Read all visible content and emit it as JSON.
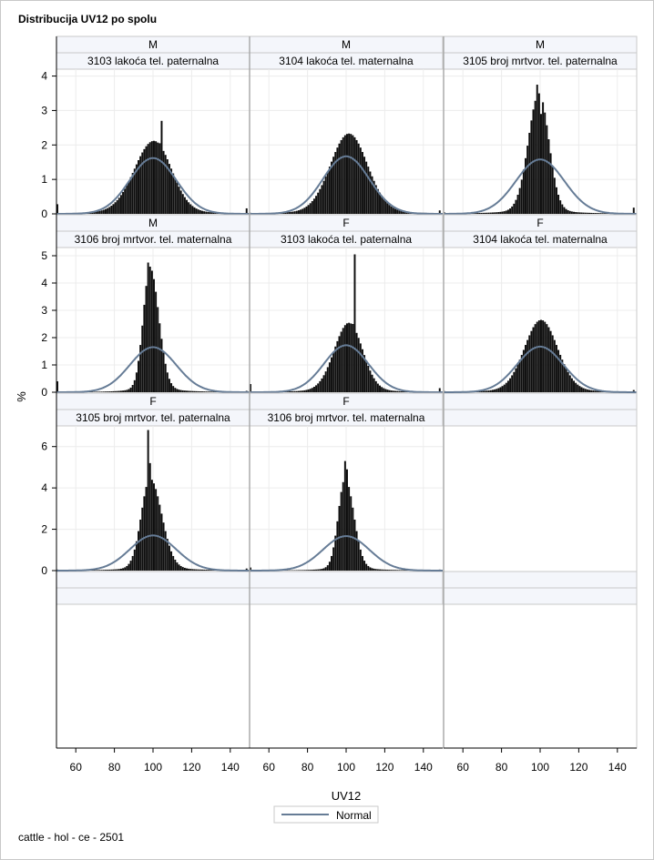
{
  "title": "Distribucija UV12 po spolu",
  "footnote": "cattle - hol - ce - 2501",
  "colors": {
    "bar": "#0d0d0d",
    "normal_curve": "#667c96",
    "header_bg": "#f4f6fb",
    "grid": "#ececec",
    "border": "#c8c8c8",
    "panel_sep": "#a6a6a6"
  },
  "chart_data": {
    "type": "histogram-panel",
    "xlabel": "UV12",
    "ylabel": "%",
    "xlim": [
      50,
      150
    ],
    "x_ticks": [
      60,
      80,
      100,
      120,
      140
    ],
    "grid": true,
    "legend": {
      "position": "bottom-center",
      "entries": [
        {
          "label": "Normal",
          "style": "line"
        }
      ]
    },
    "rows": [
      {
        "ylim": [
          0,
          4.2
        ],
        "y_ticks": [
          0,
          1,
          2,
          3,
          4
        ]
      },
      {
        "ylim": [
          0,
          5.3
        ],
        "y_ticks": [
          0,
          1,
          2,
          3,
          4,
          5
        ]
      },
      {
        "ylim": [
          0,
          7.0
        ],
        "y_ticks": [
          0,
          2,
          4,
          6
        ]
      }
    ],
    "panels": [
      {
        "sex": "M",
        "trait": "3103 lakoća tel. paternalna",
        "row": 0,
        "col": 0,
        "peak": 2.0,
        "peak_x": 100,
        "sigma_left": 10,
        "sigma_right": 9,
        "normal_peak": 1.62,
        "normal_sd": 12,
        "spikes": [
          {
            "x": 104,
            "y": 2.7
          },
          {
            "x": 103,
            "y": 2.05
          }
        ],
        "edge_left": 0.28,
        "edge_right": 0.16
      },
      {
        "sex": "M",
        "trait": "3104 lakoća tel. maternalna",
        "row": 0,
        "col": 1,
        "peak": 2.2,
        "peak_x": 101,
        "sigma_left": 9.5,
        "sigma_right": 9.5,
        "normal_peak": 1.67,
        "normal_sd": 12,
        "spikes": [],
        "edge_left": 0.03,
        "edge_right": 0.1
      },
      {
        "sex": "M",
        "trait": "3105 broj mrtvor. tel. paternalna",
        "row": 0,
        "col": 2,
        "peak": 3.3,
        "peak_x": 99,
        "sigma_left": 5.5,
        "sigma_right": 5,
        "normal_peak": 1.58,
        "normal_sd": 12.5,
        "spikes": [
          {
            "x": 98,
            "y": 3.75
          },
          {
            "x": 100,
            "y": 2.9
          }
        ],
        "edge_left": 0.04,
        "edge_right": 0.18
      },
      {
        "sex": "M",
        "trait": "3106 broj mrtvor. tel. maternalna",
        "row": 1,
        "col": 0,
        "peak": 4.3,
        "peak_x": 98,
        "sigma_left": 3.5,
        "sigma_right": 4.5,
        "normal_peak": 1.65,
        "normal_sd": 12,
        "spikes": [
          {
            "x": 97,
            "y": 4.75
          },
          {
            "x": 98,
            "y": 4.6
          }
        ],
        "edge_left": 0.4,
        "edge_right": 0.05
      },
      {
        "sex": "F",
        "trait": "3103 lakoća tel. paternalna",
        "row": 1,
        "col": 1,
        "peak": 2.4,
        "peak_x": 101,
        "sigma_left": 7.5,
        "sigma_right": 7,
        "normal_peak": 1.72,
        "normal_sd": 11.5,
        "spikes": [
          {
            "x": 104,
            "y": 5.05
          },
          {
            "x": 103,
            "y": 2.5
          }
        ],
        "edge_left": 0.3,
        "edge_right": 0.15
      },
      {
        "sex": "F",
        "trait": "3104 lakoća tel. maternalna",
        "row": 1,
        "col": 2,
        "peak": 2.5,
        "peak_x": 100,
        "sigma_left": 8.5,
        "sigma_right": 8.5,
        "normal_peak": 1.67,
        "normal_sd": 12,
        "spikes": [
          {
            "x": 100,
            "y": 2.65
          }
        ],
        "edge_left": 0.04,
        "edge_right": 0.08
      },
      {
        "sex": "F",
        "trait": "3105 broj mrtvor. tel. paternalna",
        "row": 2,
        "col": 0,
        "peak": 4.2,
        "peak_x": 98,
        "sigma_left": 4.5,
        "sigma_right": 6,
        "normal_peak": 1.7,
        "normal_sd": 12,
        "spikes": [
          {
            "x": 97,
            "y": 6.8
          },
          {
            "x": 98,
            "y": 5.2
          }
        ],
        "edge_left": 0.05,
        "edge_right": 0.1
      },
      {
        "sex": "F",
        "trait": "3106 broj mrtvor. tel. maternalna",
        "row": 2,
        "col": 1,
        "peak": 4.2,
        "peak_x": 99,
        "sigma_left": 3.5,
        "sigma_right": 4.5,
        "normal_peak": 1.67,
        "normal_sd": 12,
        "spikes": [
          {
            "x": 99,
            "y": 5.3
          },
          {
            "x": 100,
            "y": 4.9
          }
        ],
        "edge_left": 0.15,
        "edge_right": 0.05
      }
    ]
  }
}
